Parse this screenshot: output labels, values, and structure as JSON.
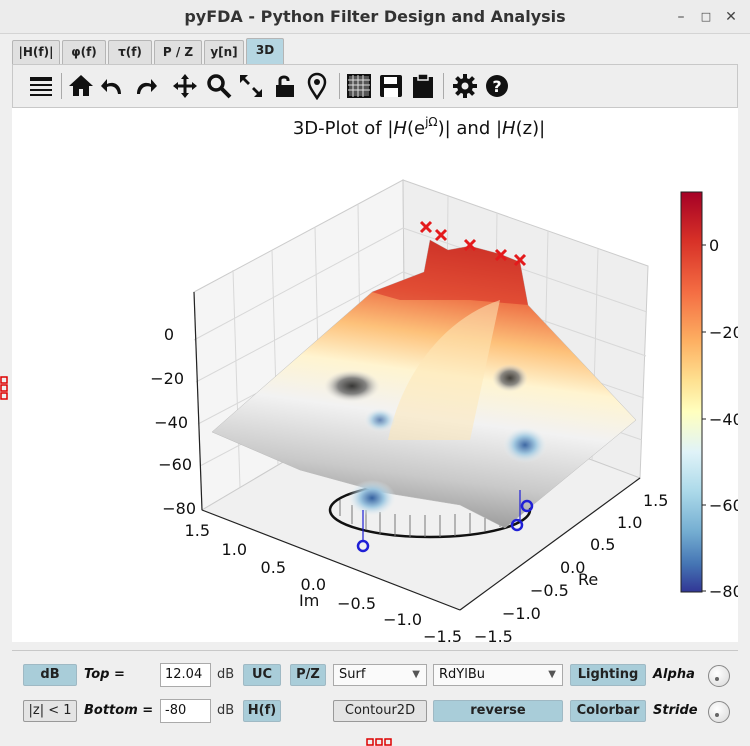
{
  "window": {
    "title": "pyFDA - Python Filter Design and Analysis"
  },
  "tabs": [
    {
      "label": "|H(f)|"
    },
    {
      "label": "φ(f)"
    },
    {
      "label": "τ(f)"
    },
    {
      "label": "P / Z"
    },
    {
      "label": "y[n]"
    },
    {
      "label": "3D"
    }
  ],
  "toolbar": {
    "icons": [
      "menu-icon",
      "home-icon",
      "undo-icon",
      "redo-icon",
      "pan-icon",
      "zoom-icon",
      "fullscreen-icon",
      "lock-icon",
      "marker-icon",
      "grid-icon",
      "save-icon",
      "clipboard-icon",
      "gear-icon",
      "help-icon"
    ]
  },
  "plot": {
    "title_prefix": "3D-Plot of |",
    "title_h1": "H",
    "title_e": "(e",
    "title_sup": "jΩ",
    "title_mid": ")| and |",
    "title_h2": "H",
    "title_z": "(z)",
    "title_end": "|",
    "zticks": [
      "0",
      "−20",
      "−40",
      "−60",
      "−80"
    ],
    "im_ticks": [
      "1.5",
      "1.0",
      "0.5",
      "0.0",
      "−0.5",
      "−1.0",
      "−1.5"
    ],
    "re_ticks": [
      "1.5",
      "1.0",
      "0.5",
      "0.0",
      "−0.5",
      "−1.0",
      "−1.5"
    ],
    "im_label": "Im",
    "re_label": "Re",
    "colorbar_ticks": [
      "0",
      "−20",
      "−40",
      "−60",
      "−80"
    ]
  },
  "chart_data": {
    "type": "surface3d",
    "colormap": "RdYlBu",
    "zlim": [
      -80,
      12.04
    ],
    "xlim": [
      -1.5,
      1.5
    ],
    "ylim": [
      -1.5,
      1.5
    ],
    "poles_count": 5,
    "zeros_count": 4
  },
  "controls": {
    "db_label": "dB",
    "top_label": "Top =",
    "top_value": "12.04",
    "top_unit": "dB",
    "uc_label": "UC",
    "pz_label": "P/Z",
    "surf_value": "Surf",
    "cmap_value": "RdYlBu",
    "lighting_label": "Lighting",
    "alpha_label": "Alpha",
    "zlt1_label": "|z| < 1",
    "bottom_label": "Bottom =",
    "bottom_value": "-80",
    "bottom_unit": "dB",
    "hf_label": "H(f)",
    "contour_label": "Contour2D",
    "reverse_label": "reverse",
    "colorbar_label": "Colorbar",
    "stride_label": "Stride"
  },
  "colors": {
    "accent": "#a9cdd9",
    "pole": "#e41a1c",
    "zero": "#1f1fd6"
  }
}
